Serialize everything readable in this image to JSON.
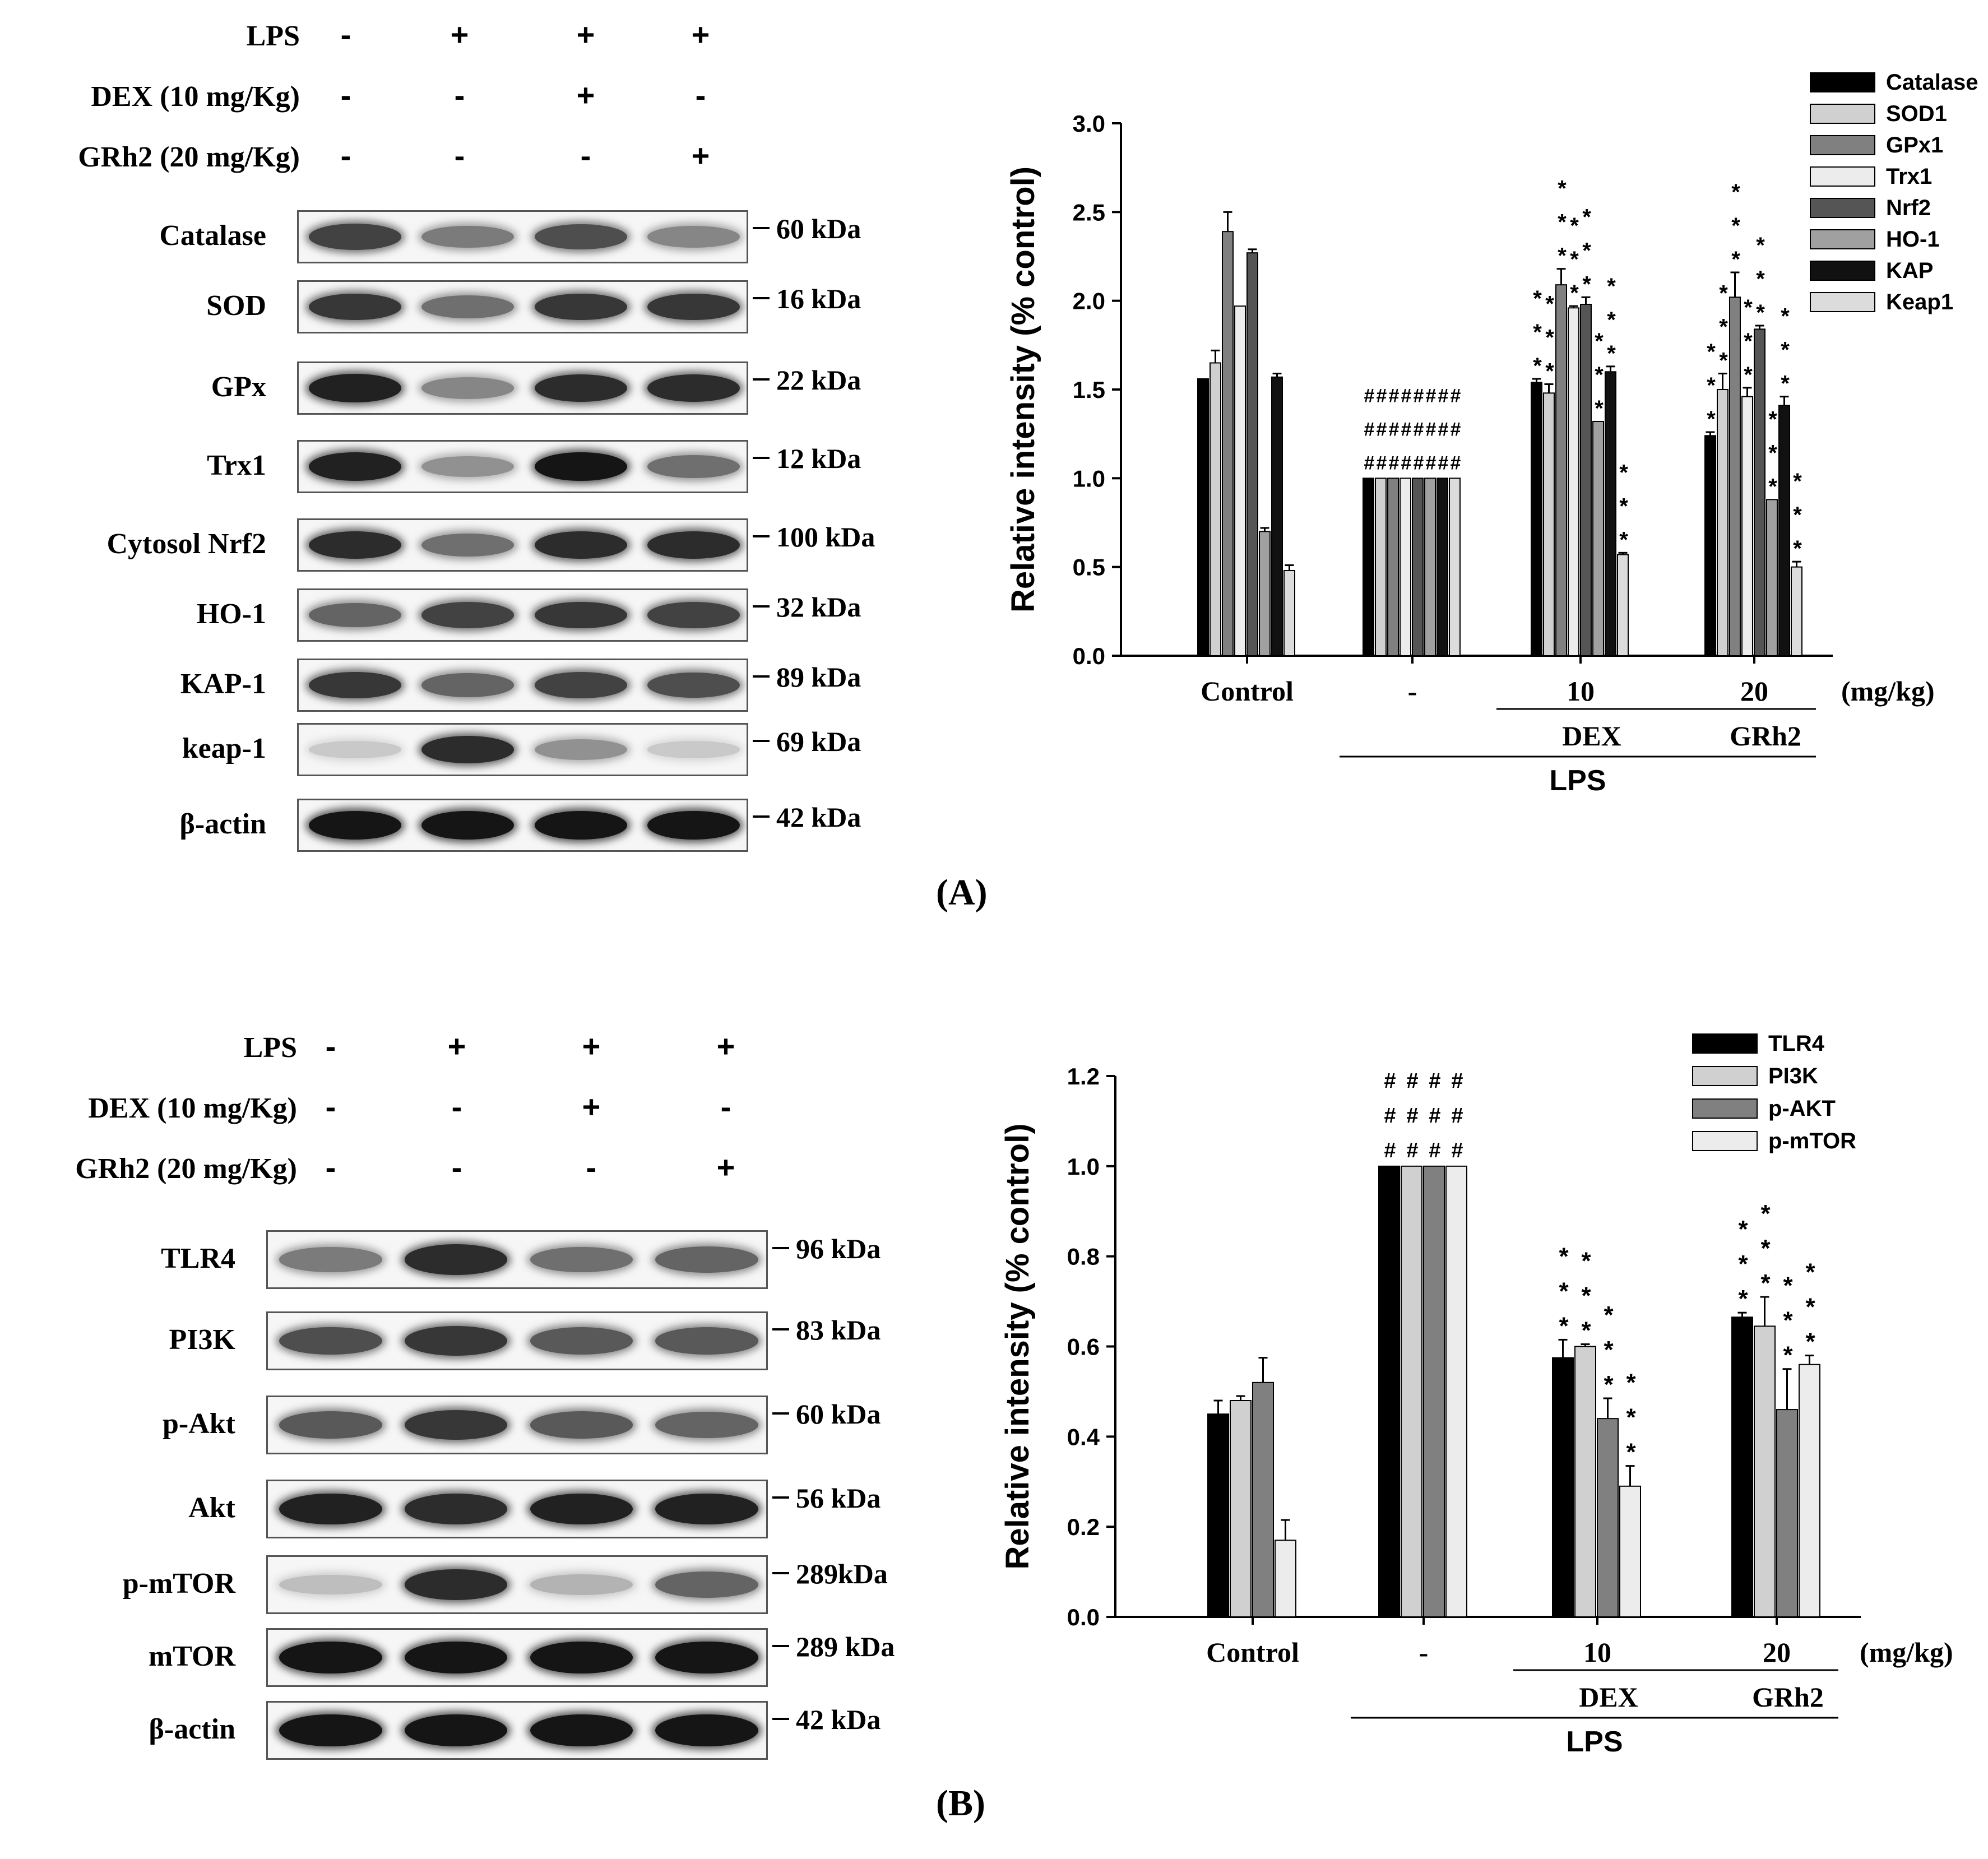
{
  "panelA": {
    "letter": "(A)",
    "conditions": [
      {
        "label": "LPS",
        "signs": [
          "-",
          "+",
          "+",
          "+"
        ]
      },
      {
        "label": "DEX (10 mg/Kg)",
        "signs": [
          "-",
          "-",
          "+",
          "-"
        ]
      },
      {
        "label": "GRh2 (20 mg/Kg)",
        "signs": [
          "-",
          "-",
          "-",
          "+"
        ]
      }
    ],
    "blots": [
      {
        "label": "Catalase",
        "kda": "60 kDa",
        "intensity": [
          0.75,
          0.5,
          0.7,
          0.45
        ]
      },
      {
        "label": "SOD",
        "kda": "16 kDa",
        "intensity": [
          0.8,
          0.55,
          0.8,
          0.8
        ]
      },
      {
        "label": "GPx",
        "kda": "22 kDa",
        "intensity": [
          0.9,
          0.45,
          0.85,
          0.85
        ]
      },
      {
        "label": "Trx1",
        "kda": "12 kDa",
        "intensity": [
          0.9,
          0.4,
          0.95,
          0.55
        ]
      },
      {
        "label": "Cytosol Nrf2",
        "kda": "100 kDa",
        "intensity": [
          0.85,
          0.55,
          0.85,
          0.85
        ]
      },
      {
        "label": "HO-1",
        "kda": "32 kDa",
        "intensity": [
          0.6,
          0.75,
          0.8,
          0.75
        ]
      },
      {
        "label": "KAP-1",
        "kda": "89 kDa",
        "intensity": [
          0.8,
          0.6,
          0.75,
          0.7
        ]
      },
      {
        "label": "keap-1",
        "kda": "69 kDa",
        "intensity": [
          0.15,
          0.85,
          0.4,
          0.15
        ]
      },
      {
        "label": "β-actin",
        "kda": "42 kDa",
        "intensity": [
          0.95,
          0.95,
          0.95,
          0.95
        ]
      }
    ]
  },
  "panelB": {
    "letter": "(B)",
    "conditions": [
      {
        "label": "LPS",
        "signs": [
          "-",
          "+",
          "+",
          "+"
        ]
      },
      {
        "label": "DEX (10 mg/Kg)",
        "signs": [
          "-",
          "-",
          "+",
          "-"
        ]
      },
      {
        "label": "GRh2 (20 mg/Kg)",
        "signs": [
          "-",
          "-",
          "-",
          "+"
        ]
      }
    ],
    "blots": [
      {
        "label": "TLR4",
        "kda": "96 kDa",
        "intensity": [
          0.5,
          0.85,
          0.55,
          0.6
        ]
      },
      {
        "label": "PI3K",
        "kda": "83 kDa",
        "intensity": [
          0.7,
          0.8,
          0.65,
          0.65
        ]
      },
      {
        "label": "p-Akt",
        "kda": "60 kDa",
        "intensity": [
          0.65,
          0.8,
          0.65,
          0.6
        ]
      },
      {
        "label": "Akt",
        "kda": "56 kDa",
        "intensity": [
          0.9,
          0.85,
          0.9,
          0.9
        ]
      },
      {
        "label": "p-mTOR",
        "kda": "289kDa",
        "intensity": [
          0.2,
          0.85,
          0.25,
          0.6
        ]
      },
      {
        "label": "mTOR",
        "kda": "289 kDa",
        "intensity": [
          0.95,
          0.95,
          0.95,
          0.95
        ]
      },
      {
        "label": "β-actin",
        "kda": "42 kDa",
        "intensity": [
          0.95,
          0.95,
          0.95,
          0.95
        ]
      }
    ]
  },
  "chart_data": [
    {
      "type": "bar",
      "ylabel": "Relative intensity (% control)",
      "ylim": [
        0,
        3.0
      ],
      "yticks": [
        "0.0",
        "0.5",
        "1.0",
        "1.5",
        "2.0",
        "2.5",
        "3.0"
      ],
      "categories": [
        "Control",
        "-",
        "10",
        "20"
      ],
      "unit_label": "(mg/kg)",
      "group_labels": [
        "DEX",
        "GRh2"
      ],
      "treatment_label": "LPS",
      "legend_position": "top-right",
      "series": [
        {
          "name": "Catalase",
          "color": "#000000",
          "values": [
            1.56,
            1.0,
            1.54,
            1.24
          ],
          "errors": [
            0.0,
            0.0,
            0.02,
            0.02
          ]
        },
        {
          "name": "SOD1",
          "color": "#d0d0d0",
          "values": [
            1.65,
            1.0,
            1.48,
            1.5
          ],
          "errors": [
            0.07,
            0.0,
            0.05,
            0.09
          ]
        },
        {
          "name": "GPx1",
          "color": "#808080",
          "values": [
            2.39,
            1.0,
            2.09,
            2.02
          ],
          "errors": [
            0.11,
            0.0,
            0.09,
            0.14
          ]
        },
        {
          "name": "Trx1",
          "color": "#ececec",
          "values": [
            1.97,
            1.0,
            1.96,
            1.46
          ],
          "errors": [
            0.0,
            0.0,
            0.01,
            0.05
          ]
        },
        {
          "name": "Nrf2",
          "color": "#555555",
          "values": [
            2.27,
            1.0,
            1.98,
            1.84
          ],
          "errors": [
            0.02,
            0.0,
            0.04,
            0.02
          ]
        },
        {
          "name": "HO-1",
          "color": "#a0a0a0",
          "values": [
            0.7,
            1.0,
            1.32,
            0.88
          ],
          "errors": [
            0.02,
            0.0,
            0.0,
            0.0
          ]
        },
        {
          "name": "KAP",
          "color": "#111111",
          "values": [
            1.57,
            1.0,
            1.6,
            1.41
          ],
          "errors": [
            0.02,
            0.0,
            0.03,
            0.05
          ]
        },
        {
          "name": "Keap1",
          "color": "#dcdcdc",
          "values": [
            0.48,
            1.0,
            0.57,
            0.5
          ],
          "errors": [
            0.03,
            0.0,
            0.01,
            0.03
          ]
        }
      ],
      "annotations": {
        "hash": "#",
        "star": "*"
      }
    },
    {
      "type": "bar",
      "ylabel": "Relative intensity (% control)",
      "ylim": [
        0,
        1.2
      ],
      "yticks": [
        "0.0",
        "0.2",
        "0.4",
        "0.6",
        "0.8",
        "1.0",
        "1.2"
      ],
      "categories": [
        "Control",
        "-",
        "10",
        "20"
      ],
      "unit_label": "(mg/kg)",
      "group_labels": [
        "DEX",
        "GRh2"
      ],
      "treatment_label": "LPS",
      "legend_position": "top-right",
      "series": [
        {
          "name": "TLR4",
          "color": "#000000",
          "values": [
            0.45,
            1.0,
            0.575,
            0.665
          ],
          "errors": [
            0.03,
            0.0,
            0.04,
            0.01
          ]
        },
        {
          "name": "PI3K",
          "color": "#d0d0d0",
          "values": [
            0.48,
            1.0,
            0.6,
            0.645
          ],
          "errors": [
            0.01,
            0.0,
            0.005,
            0.065
          ]
        },
        {
          "name": "p-AKT",
          "color": "#808080",
          "values": [
            0.52,
            1.0,
            0.44,
            0.46
          ],
          "errors": [
            0.055,
            0.0,
            0.045,
            0.09
          ]
        },
        {
          "name": "p-mTOR",
          "color": "#ececec",
          "values": [
            0.17,
            1.0,
            0.29,
            0.56
          ],
          "errors": [
            0.045,
            0.0,
            0.045,
            0.02
          ]
        }
      ],
      "annotations": {
        "hash": "#",
        "star": "*"
      }
    }
  ]
}
